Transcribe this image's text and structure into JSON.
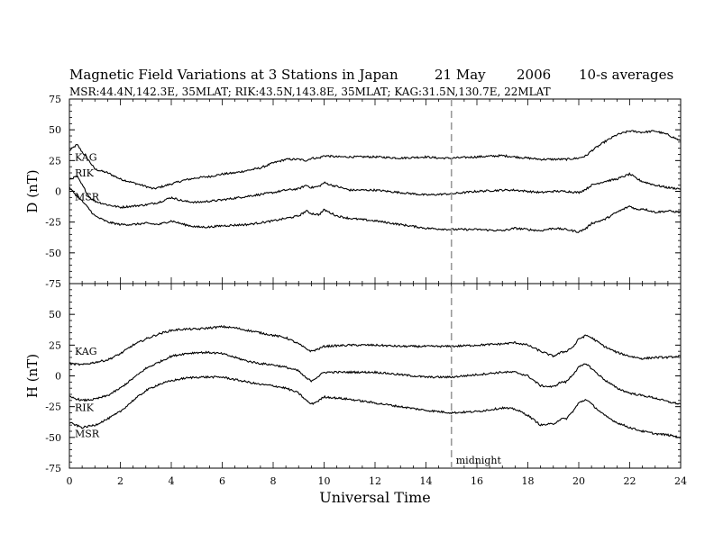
{
  "header": {
    "title": "Magnetic Field Variations at 3 Stations in Japan",
    "date": "21 May",
    "year": "2006",
    "averaging": "10-s averages",
    "stations_line": "MSR:44.4N,142.3E, 35MLAT;   RIK:43.5N,143.8E, 35MLAT;   KAG:31.5N,130.7E, 22MLAT"
  },
  "chart_data": [
    {
      "type": "line",
      "panel": "top",
      "ylabel": "D (nT)",
      "ylim": [
        -75,
        75
      ],
      "yticks": [
        75,
        50,
        25,
        0,
        -25,
        -50,
        -75
      ],
      "xlim": [
        0,
        24
      ],
      "series": [
        {
          "name": "KAG",
          "x": [
            0,
            0.3,
            0.5,
            0.8,
            1,
            1.5,
            2,
            2.5,
            3,
            3.3,
            3.5,
            4,
            4.5,
            5,
            5.5,
            6,
            6.5,
            7,
            7.5,
            8,
            8.5,
            9,
            9.3,
            9.5,
            9.8,
            10,
            10.5,
            11,
            12,
            13,
            14,
            14.5,
            15,
            16,
            17,
            17.5,
            18,
            18.5,
            19,
            19.5,
            20,
            20.3,
            20.5,
            21,
            21.5,
            22,
            22.5,
            23,
            23.5,
            24
          ],
          "values": [
            33,
            38,
            32,
            24,
            18,
            15,
            10,
            7,
            4,
            2,
            3,
            6,
            9,
            11,
            12,
            14,
            15,
            17,
            19,
            23,
            26,
            26,
            25,
            27,
            27,
            29,
            28,
            28,
            28,
            27,
            28,
            27,
            27,
            28,
            29,
            28,
            27,
            26,
            26,
            26,
            27,
            29,
            33,
            40,
            46,
            49,
            48,
            49,
            46,
            41
          ]
        },
        {
          "name": "RIK",
          "x": [
            0,
            0.3,
            0.5,
            0.8,
            1,
            1.5,
            2,
            2.5,
            3,
            3.5,
            4,
            4.5,
            5,
            5.5,
            6,
            7,
            8,
            8.5,
            9,
            9.3,
            9.5,
            9.8,
            10,
            10.3,
            10.5,
            11,
            12,
            13,
            14,
            15,
            16,
            17,
            17.5,
            18,
            18.5,
            19,
            19.5,
            20,
            20.3,
            20.5,
            21,
            21.5,
            22,
            22.3,
            22.5,
            23,
            23.5,
            24
          ],
          "values": [
            10,
            12,
            5,
            -5,
            -8,
            -11,
            -13,
            -12,
            -11,
            -9,
            -5,
            -8,
            -9,
            -8,
            -7,
            -4,
            -1,
            1,
            2,
            5,
            3,
            4,
            7,
            5,
            4,
            1,
            1,
            -1,
            -3,
            -2,
            0,
            1,
            1,
            0,
            -1,
            0,
            0,
            -1,
            2,
            5,
            8,
            10,
            14,
            10,
            8,
            5,
            3,
            2
          ]
        },
        {
          "name": "MSR",
          "x": [
            0,
            0.3,
            0.5,
            0.8,
            1,
            1.5,
            2,
            2.5,
            3,
            3.5,
            4,
            4.5,
            5,
            5.5,
            6,
            7,
            8,
            8.5,
            9,
            9.3,
            9.5,
            9.8,
            10,
            10.3,
            10.5,
            11,
            12,
            13,
            14,
            15,
            16,
            17,
            17.5,
            18,
            18.5,
            19,
            19.5,
            20,
            20.3,
            20.5,
            21,
            21.5,
            22,
            22.3,
            22.5,
            23,
            23.5,
            24
          ],
          "values": [
            3,
            -4,
            -8,
            -15,
            -20,
            -25,
            -27,
            -27,
            -26,
            -27,
            -24,
            -27,
            -29,
            -29,
            -28,
            -27,
            -24,
            -22,
            -20,
            -16,
            -18,
            -19,
            -15,
            -18,
            -20,
            -22,
            -24,
            -27,
            -30,
            -31,
            -31,
            -32,
            -30,
            -31,
            -32,
            -30,
            -31,
            -33,
            -30,
            -26,
            -23,
            -17,
            -12,
            -15,
            -14,
            -17,
            -16,
            -17
          ]
        }
      ]
    },
    {
      "type": "line",
      "panel": "bottom",
      "ylabel": "H (nT)",
      "xlabel": "Universal Time",
      "ylim": [
        -75,
        75
      ],
      "yticks": [
        50,
        25,
        0,
        -25,
        -50,
        -75
      ],
      "xlim": [
        0,
        24
      ],
      "xticks": [
        0,
        2,
        4,
        6,
        8,
        10,
        12,
        14,
        16,
        18,
        20,
        22,
        24
      ],
      "series": [
        {
          "name": "KAG",
          "x": [
            0,
            0.5,
            1,
            1.5,
            2,
            2.5,
            3,
            3.5,
            4,
            4.5,
            5,
            5.5,
            6,
            6.5,
            7,
            7.5,
            8,
            8.5,
            9,
            9.3,
            9.5,
            9.8,
            10,
            11,
            12,
            13,
            14,
            15,
            16,
            17,
            17.5,
            18,
            18.5,
            19,
            19.3,
            19.5,
            19.8,
            20,
            20.3,
            20.5,
            21,
            21.5,
            22,
            22.5,
            23,
            23.5,
            24
          ],
          "values": [
            10,
            9,
            11,
            13,
            18,
            25,
            30,
            34,
            37,
            38,
            38,
            39,
            40,
            39,
            37,
            35,
            33,
            31,
            26,
            22,
            20,
            22,
            24,
            25,
            25,
            24,
            24,
            24,
            25,
            26,
            27,
            25,
            20,
            16,
            19,
            20,
            24,
            30,
            33,
            31,
            24,
            19,
            16,
            14,
            15,
            15,
            16
          ]
        },
        {
          "name": "RIK",
          "x": [
            0,
            0.5,
            1,
            1.5,
            2,
            2.5,
            3,
            3.5,
            4,
            4.5,
            5,
            5.5,
            6,
            6.5,
            7,
            7.5,
            8,
            8.5,
            9,
            9.3,
            9.5,
            9.8,
            10,
            11,
            12,
            13,
            14,
            15,
            16,
            17,
            17.5,
            18,
            18.5,
            19,
            19.3,
            19.5,
            19.8,
            20,
            20.3,
            20.5,
            21,
            21.5,
            22,
            22.5,
            23,
            23.5,
            24
          ],
          "values": [
            -17,
            -20,
            -19,
            -16,
            -10,
            -2,
            6,
            11,
            16,
            18,
            19,
            19,
            18,
            15,
            12,
            10,
            9,
            7,
            4,
            -2,
            -4,
            0,
            3,
            3,
            3,
            1,
            -1,
            -1,
            1,
            3,
            3,
            0,
            -8,
            -9,
            -5,
            -5,
            2,
            7,
            10,
            6,
            -3,
            -10,
            -14,
            -16,
            -18,
            -21,
            -23
          ]
        },
        {
          "name": "MSR",
          "x": [
            0,
            0.5,
            1,
            1.5,
            2,
            2.5,
            3,
            3.5,
            4,
            4.5,
            5,
            5.5,
            6,
            6.5,
            7,
            7.5,
            8,
            8.5,
            9,
            9.3,
            9.5,
            9.8,
            10,
            11,
            12,
            13,
            14,
            15,
            16,
            17,
            17.5,
            18,
            18.5,
            19,
            19.3,
            19.5,
            19.8,
            20,
            20.3,
            20.5,
            21,
            21.5,
            22,
            22.5,
            23,
            23.5,
            24
          ],
          "values": [
            -38,
            -42,
            -40,
            -35,
            -29,
            -20,
            -12,
            -7,
            -4,
            -2,
            -1,
            -1,
            -1,
            -3,
            -5,
            -7,
            -8,
            -10,
            -14,
            -20,
            -23,
            -20,
            -17,
            -19,
            -22,
            -25,
            -28,
            -30,
            -29,
            -26,
            -27,
            -32,
            -40,
            -39,
            -35,
            -35,
            -28,
            -22,
            -19,
            -23,
            -32,
            -38,
            -42,
            -45,
            -47,
            -48,
            -50
          ]
        }
      ]
    }
  ],
  "annotations": {
    "midnight_label": "midnight",
    "midnight_x": 15
  }
}
